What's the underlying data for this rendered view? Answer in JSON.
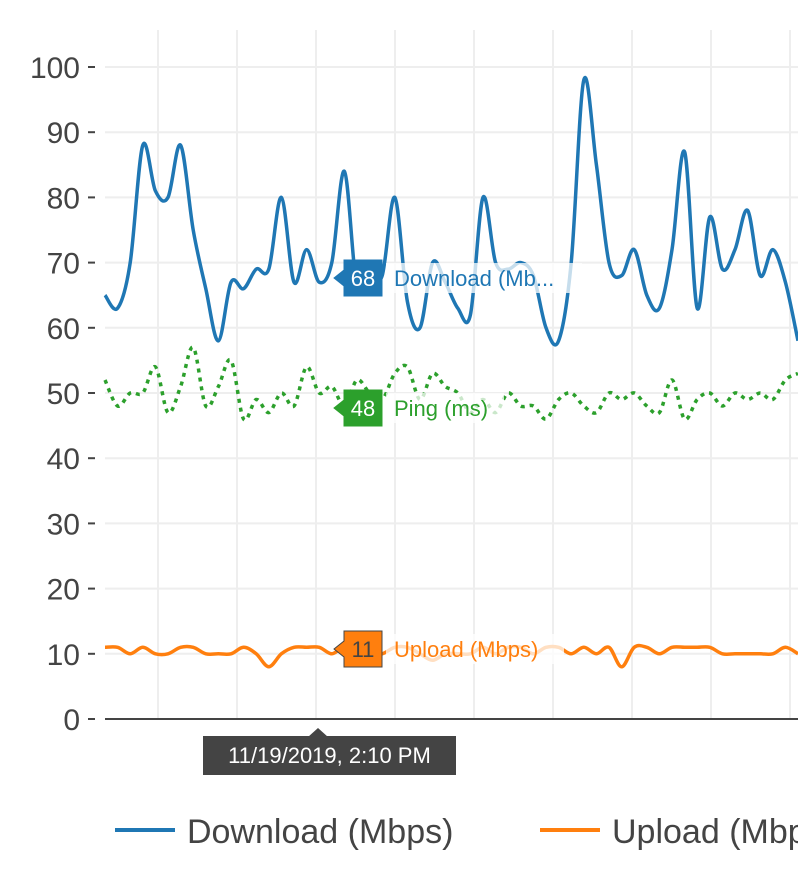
{
  "chart_data": {
    "type": "line",
    "ylim": [
      0,
      105
    ],
    "yticks": [
      "0",
      "10",
      "20",
      "30",
      "40",
      "50",
      "60",
      "70",
      "80",
      "90",
      "100"
    ],
    "grid": true,
    "legend_position": "bottom",
    "hover_x_label": "11/19/2019, 2:10 PM",
    "series": [
      {
        "name": "Download (Mbps)",
        "hover_label": "Download (Mb...",
        "hover_value": "68",
        "color": "#1f77b4",
        "dash": "solid",
        "values": [
          65,
          63,
          70,
          88,
          81,
          80,
          88,
          75,
          66,
          58,
          67,
          66,
          69,
          69,
          80,
          67,
          72,
          67,
          70,
          84,
          66,
          68,
          68,
          80,
          64,
          60,
          70,
          67,
          63,
          62,
          80,
          70,
          69,
          70,
          68,
          60,
          58,
          70,
          98,
          85,
          70,
          68,
          72,
          65,
          63,
          72,
          87,
          63,
          77,
          69,
          72,
          78,
          68,
          72,
          67,
          58
        ]
      },
      {
        "name": "Ping (ms)",
        "hover_label": "Ping (ms)",
        "hover_value": "48",
        "color": "#2ca02c",
        "dash": "dot",
        "values": [
          52,
          48,
          50,
          50,
          54,
          47,
          51,
          57,
          48,
          51,
          55,
          46,
          49,
          47,
          50,
          48,
          54,
          50,
          51,
          48,
          52,
          50,
          49,
          53,
          54,
          49,
          53,
          51,
          50,
          47,
          49,
          47,
          50,
          48,
          48,
          46,
          49,
          50,
          48,
          47,
          50,
          49,
          50,
          48,
          47,
          52,
          46,
          49,
          50,
          48,
          50,
          49,
          50,
          49,
          52,
          53
        ]
      },
      {
        "name": "Upload (Mbps)",
        "hover_label": "Upload (Mbps)",
        "hover_value": "11",
        "color": "#ff7f0e",
        "dash": "solid",
        "values": [
          11,
          11,
          10,
          11,
          10,
          10,
          11,
          11,
          10,
          10,
          10,
          11,
          10,
          8,
          10,
          11,
          11,
          11,
          10,
          11,
          10,
          10,
          10,
          11,
          11,
          10,
          9,
          10,
          10,
          10,
          11,
          10,
          11,
          11,
          10,
          11,
          11,
          10,
          11,
          10,
          11,
          8,
          11,
          11,
          10,
          11,
          11,
          11,
          11,
          10,
          10,
          10,
          10,
          10,
          11,
          10
        ]
      }
    ]
  }
}
